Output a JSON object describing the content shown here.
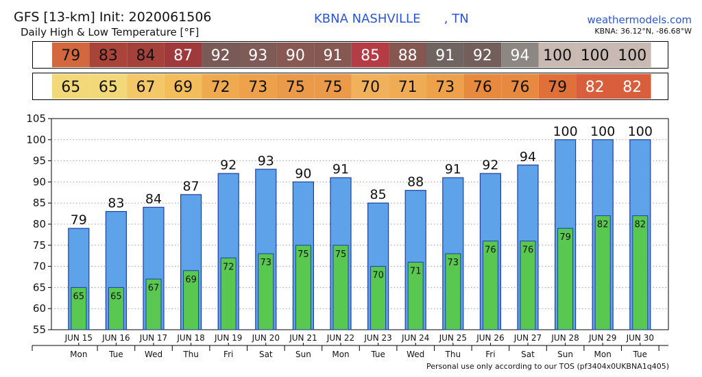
{
  "header": {
    "title_line1": "GFS [13-km] Init: 2020061506",
    "title_line2": "Daily High & Low Temperature [°F]",
    "station": "KBNA NASHVILLE      , TN",
    "site": "weathermodels.com",
    "coords": "KBNA: 36.12°N, -86.68°W"
  },
  "footer": {
    "tos": "Personal use only according to our TOS (pf3404x0UKBNA1q405)"
  },
  "colors": {
    "high_bar": "#5ea3ea",
    "low_bar": "#58c850",
    "bar_edge": "#1f3f9e",
    "grid": "#9a9a9a",
    "high_cells": [
      "#d3683e",
      "#a9443a",
      "#a4413a",
      "#a0393b",
      "#7a5a56",
      "#7e5b56",
      "#885853",
      "#855852",
      "#b53c44",
      "#865751",
      "#6f6460",
      "#725e5a",
      "#8d8783",
      "#c8b9b2",
      "#c8b9b2",
      "#c8b9b2"
    ],
    "low_cells": [
      "#f3d87a",
      "#f3d87a",
      "#f4c868",
      "#f3bd5b",
      "#efa94f",
      "#eca14a",
      "#ea9a49",
      "#ea9a49",
      "#f1b05a",
      "#f0ab55",
      "#eca14a",
      "#e7893e",
      "#e7893e",
      "#e0703a",
      "#d85e3c",
      "#d85e3c"
    ],
    "high_text_dark_until": 3
  },
  "chart_data": {
    "type": "bar",
    "categories": [
      "JUN 15",
      "JUN 16",
      "JUN 17",
      "JUN 18",
      "JUN 19",
      "JUN 20",
      "JUN 21",
      "JUN 22",
      "JUN 23",
      "JUN 24",
      "JUN 25",
      "JUN 26",
      "JUN 27",
      "JUN 28",
      "JUN 29",
      "JUN 30"
    ],
    "weekdays": [
      "Mon",
      "Tue",
      "Wed",
      "Thu",
      "Fri",
      "Sat",
      "Sun",
      "Mon",
      "Tue",
      "Wed",
      "Thu",
      "Fri",
      "Sat",
      "Sun",
      "Mon",
      "Tue"
    ],
    "series": [
      {
        "values": [
          79,
          83,
          84,
          87,
          92,
          93,
          90,
          91,
          85,
          88,
          91,
          92,
          94,
          100,
          100,
          100
        ]
      },
      {
        "values": [
          65,
          65,
          67,
          69,
          72,
          73,
          75,
          75,
          70,
          71,
          73,
          76,
          76,
          79,
          82,
          82
        ]
      }
    ],
    "ylim": [
      55,
      105
    ],
    "yticks": [
      55,
      60,
      65,
      70,
      75,
      80,
      85,
      90,
      95,
      100,
      105
    ],
    "grid": true
  }
}
